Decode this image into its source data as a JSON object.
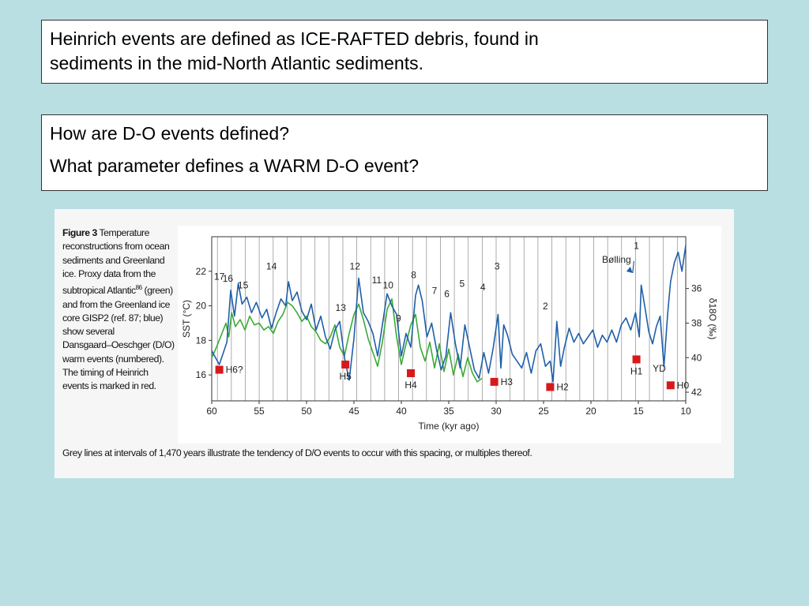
{
  "text_box_1": {
    "lines": [
      "Heinrich events are defined as ICE-RAFTED debris, found in",
      "sediments in the mid-North Atlantic sediments."
    ]
  },
  "text_box_2": {
    "question_1": "How are D-O events defined?",
    "question_2": "What parameter defines a WARM D-O event?"
  },
  "figure": {
    "caption_label": "Figure 3",
    "caption_lines": [
      " Temperature",
      "reconstructions from ocean",
      "sediments and Greenland",
      "ice. Proxy data from the",
      "subtropical Atlantic",
      " (green)",
      "and from the Greenland ice",
      "core GISP2 (ref. 87; blue)",
      "show several",
      "Dansgaard–Oeschger (D/O)",
      "warm events (numbered).",
      "The timing of Heinrich",
      "events is marked in red."
    ],
    "caption_superscript": "86",
    "caption_bottom": "Grey lines at intervals of 1,470 years illustrate the tendency of D/O events to occur with this spacing, or multiples thereof."
  },
  "chart_data": {
    "type": "line",
    "xlabel": "Time (kyr ago)",
    "ylabel_left": "SST (°C)",
    "ylabel_right": "δ18O (‰)",
    "xlim": [
      60,
      10
    ],
    "ylim_left": [
      14.5,
      24
    ],
    "y_right_ticks_at_left_value": {
      "36": 21,
      "38": 19,
      "40": 17,
      "42": 15
    },
    "x_ticks": [
      60,
      55,
      50,
      45,
      40,
      35,
      30,
      25,
      20,
      15,
      10
    ],
    "y_left_ticks": [
      16,
      18,
      20,
      22
    ],
    "y_right_ticks": [
      36,
      38,
      40,
      42
    ],
    "grid_interval_kyr": 1.47,
    "colors": {
      "green": "#3aaa35",
      "blue": "#1f5fa8",
      "heinrich": "#d7191c",
      "grid": "#9a9a9a"
    },
    "series": [
      {
        "name": "green",
        "x": [
          60.0,
          59.5,
          59.0,
          58.5,
          58.2,
          57.9,
          57.5,
          57.0,
          56.5,
          56.0,
          55.5,
          55.0,
          54.5,
          54.0,
          53.5,
          53.0,
          52.5,
          52.0,
          51.5,
          51.0,
          50.5,
          50.0,
          49.5,
          49.0,
          48.5,
          48.0,
          47.5,
          47.0,
          46.5,
          46.0,
          45.5,
          45.0,
          44.5,
          44.0,
          43.5,
          43.0,
          42.5,
          42.0,
          41.5,
          41.0,
          40.5,
          40.0,
          39.5,
          39.0,
          38.5,
          38.0,
          37.5,
          37.0,
          36.5,
          36.0,
          35.5,
          35.0,
          34.5,
          34.0,
          33.5,
          33.0,
          32.5,
          32.0,
          31.5
        ],
        "values": [
          17.0,
          17.6,
          18.3,
          19.0,
          18.2,
          19.6,
          18.8,
          19.2,
          18.6,
          19.4,
          18.9,
          19.0,
          18.6,
          18.8,
          18.4,
          19.1,
          19.5,
          20.2,
          20.0,
          19.6,
          19.1,
          19.4,
          18.8,
          18.5,
          18.0,
          17.8,
          18.2,
          18.9,
          17.6,
          17.1,
          18.4,
          19.5,
          20.1,
          19.2,
          18.1,
          17.3,
          16.5,
          17.9,
          19.8,
          20.4,
          18.2,
          16.6,
          17.8,
          18.9,
          19.5,
          17.6,
          16.8,
          17.9,
          16.4,
          17.8,
          16.2,
          17.5,
          16.0,
          17.2,
          15.9,
          17.0,
          16.1,
          15.6,
          15.8
        ]
      },
      {
        "name": "blue",
        "x": [
          60.0,
          59.2,
          58.4,
          58.0,
          57.6,
          57.2,
          56.8,
          56.3,
          55.8,
          55.3,
          54.7,
          54.2,
          53.7,
          53.2,
          52.7,
          52.2,
          51.9,
          51.5,
          51.0,
          50.5,
          50.0,
          49.5,
          49.0,
          48.5,
          48.0,
          47.5,
          47.0,
          46.5,
          46.0,
          45.5,
          45.0,
          44.5,
          44.0,
          43.5,
          43.0,
          42.5,
          42.0,
          41.5,
          41.0,
          40.5,
          40.0,
          39.5,
          39.0,
          38.5,
          38.2,
          37.8,
          37.3,
          36.8,
          36.3,
          35.8,
          35.3,
          34.8,
          34.3,
          33.8,
          33.3,
          32.8,
          32.3,
          31.8,
          31.3,
          30.8,
          30.3,
          29.8,
          29.5,
          29.2,
          28.8,
          28.3,
          27.8,
          27.3,
          26.8,
          26.3,
          25.8,
          25.3,
          24.8,
          24.3,
          24.0,
          23.6,
          23.2,
          22.8,
          22.3,
          21.8,
          21.3,
          20.8,
          20.3,
          19.8,
          19.3,
          18.8,
          18.3,
          17.8,
          17.3,
          16.8,
          16.3,
          15.8,
          15.3,
          14.9,
          14.7,
          14.3,
          13.9,
          13.5,
          13.1,
          12.7,
          12.3,
          11.9,
          11.6,
          11.2,
          10.8,
          10.4,
          10.0
        ],
        "values": [
          17.4,
          16.6,
          17.9,
          20.9,
          19.4,
          21.3,
          20.1,
          20.5,
          19.6,
          20.2,
          19.3,
          19.8,
          18.7,
          19.6,
          20.4,
          20.0,
          21.4,
          20.3,
          20.8,
          19.7,
          19.2,
          20.1,
          18.6,
          19.4,
          18.2,
          17.5,
          18.6,
          19.1,
          17.0,
          15.7,
          18.1,
          21.6,
          19.6,
          19.1,
          18.4,
          17.1,
          18.9,
          20.7,
          20.0,
          19.5,
          17.1,
          18.4,
          17.6,
          20.6,
          21.2,
          20.3,
          18.2,
          19.0,
          17.5,
          16.3,
          17.1,
          19.6,
          17.8,
          16.4,
          18.9,
          17.6,
          16.3,
          15.8,
          17.3,
          16.1,
          17.6,
          19.5,
          16.4,
          18.9,
          18.3,
          17.2,
          16.8,
          16.4,
          17.3,
          16.1,
          17.4,
          17.8,
          16.5,
          16.8,
          15.6,
          19.1,
          16.5,
          17.6,
          18.7,
          17.9,
          18.4,
          17.8,
          18.2,
          18.6,
          17.6,
          18.3,
          17.9,
          18.6,
          17.9,
          18.9,
          19.3,
          18.6,
          19.6,
          18.2,
          21.2,
          19.9,
          18.5,
          17.8,
          18.8,
          19.4,
          16.5,
          19.6,
          21.4,
          22.5,
          23.1,
          22.0,
          23.5
        ]
      }
    ],
    "do_events": [
      {
        "label": "17",
        "x": 59.2,
        "y": 21.5
      },
      {
        "label": "16",
        "x": 58.3,
        "y": 21.4
      },
      {
        "label": "15",
        "x": 56.7,
        "y": 21.0
      },
      {
        "label": "14",
        "x": 53.7,
        "y": 22.1
      },
      {
        "label": "13",
        "x": 46.4,
        "y": 19.7
      },
      {
        "label": "12",
        "x": 44.9,
        "y": 22.1
      },
      {
        "label": "11",
        "x": 42.6,
        "y": 21.3
      },
      {
        "label": "10",
        "x": 41.4,
        "y": 21.0
      },
      {
        "label": "9",
        "x": 40.3,
        "y": 19.1
      },
      {
        "label": "8",
        "x": 38.7,
        "y": 21.6
      },
      {
        "label": "7",
        "x": 36.5,
        "y": 20.7
      },
      {
        "label": "6",
        "x": 35.2,
        "y": 20.5
      },
      {
        "label": "5",
        "x": 33.6,
        "y": 21.1
      },
      {
        "label": "4",
        "x": 31.4,
        "y": 20.9
      },
      {
        "label": "3",
        "x": 29.9,
        "y": 22.1
      },
      {
        "label": "2",
        "x": 24.8,
        "y": 19.8
      },
      {
        "label": "1",
        "x": 15.2,
        "y": 23.3
      }
    ],
    "heinrich_events": [
      {
        "label": "H6?",
        "x": 59.2,
        "y": 16.3
      },
      {
        "label": "H5",
        "x": 45.9,
        "y": 16.6
      },
      {
        "label": "H4",
        "x": 39.0,
        "y": 16.1
      },
      {
        "label": "H3",
        "x": 30.2,
        "y": 15.6
      },
      {
        "label": "H2",
        "x": 24.3,
        "y": 15.3
      },
      {
        "label": "H1",
        "x": 15.2,
        "y": 16.9
      },
      {
        "label": "H0",
        "x": 11.6,
        "y": 15.4
      }
    ],
    "annotations": [
      {
        "label": "Bølling",
        "x": 17.3,
        "y": 22.5
      },
      {
        "label": "YD",
        "x": 12.8,
        "y": 16.2
      }
    ]
  }
}
